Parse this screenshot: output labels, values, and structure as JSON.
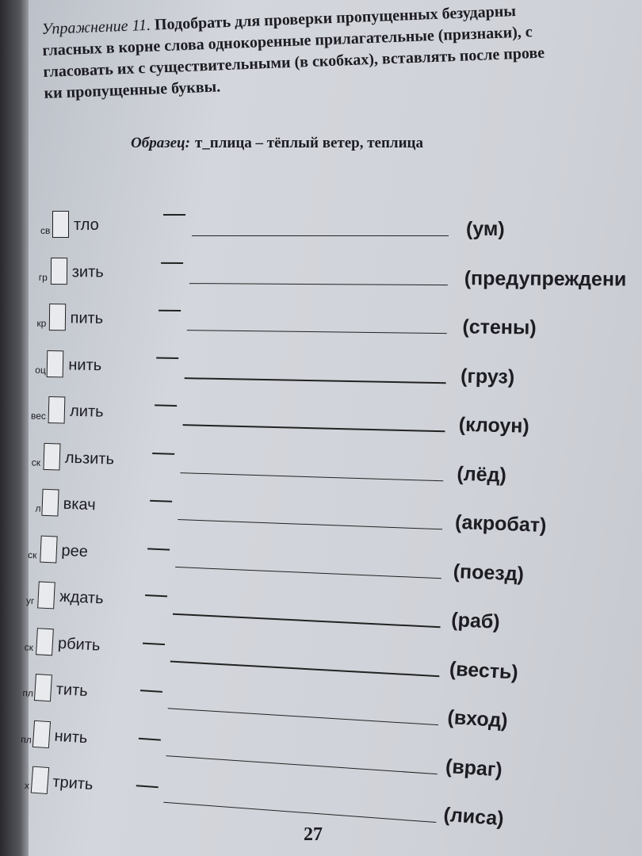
{
  "header": {
    "exercise_label": "Упражнение 11.",
    "lines": [
      "Подобрать для проверки пропущенных безударны",
      "гласных в корне слова однокоренные прилагательные (признаки), с",
      "гласовать их с существительными (в скобках), вставлять после прове",
      "ки пропущенные буквы."
    ]
  },
  "sample": {
    "label": "Образец:",
    "text": "т_плица – тёплый ветер, теплица"
  },
  "rows": [
    {
      "prefix": "св",
      "suffix": "тло",
      "hint": "(ум)"
    },
    {
      "prefix": "гр",
      "suffix": "зить",
      "hint": "(предупреждени"
    },
    {
      "prefix": "кр",
      "suffix": "пить",
      "hint": "(стены)"
    },
    {
      "prefix": "оц",
      "suffix": "нить",
      "hint": "(груз)"
    },
    {
      "prefix": "вес",
      "suffix": "лить",
      "hint": "(клоун)"
    },
    {
      "prefix": "ск",
      "suffix": "льзить",
      "hint": "(лёд)"
    },
    {
      "prefix": "л",
      "suffix": "вкач",
      "hint": "(акробат)"
    },
    {
      "prefix": "ск",
      "suffix": "рее",
      "hint": "(поезд)"
    },
    {
      "prefix": "уг",
      "suffix": "ждать",
      "hint": "(раб)"
    },
    {
      "prefix": "ск",
      "suffix": "рбить",
      "hint": "(весть)"
    },
    {
      "prefix": "пл",
      "suffix": "тить",
      "hint": "(вход)"
    },
    {
      "prefix": "пл",
      "suffix": "нить",
      "hint": "(враг)"
    },
    {
      "prefix": "х",
      "suffix": "трить",
      "hint": "(лиса)"
    }
  ],
  "page_number": "27"
}
